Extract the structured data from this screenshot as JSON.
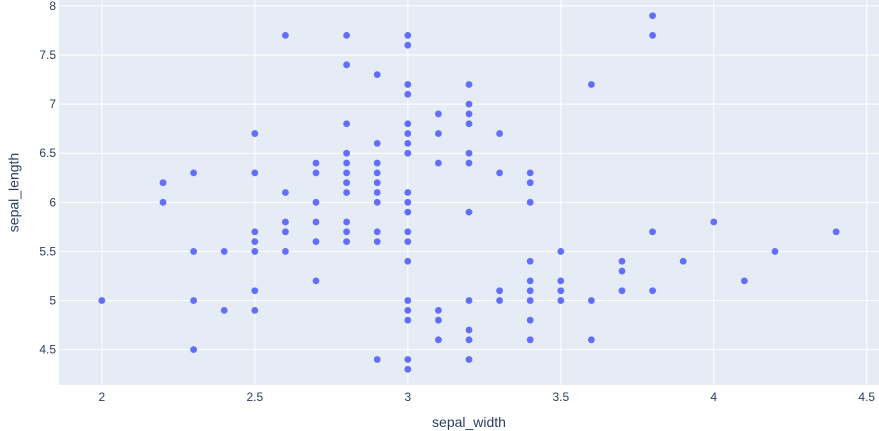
{
  "chart_data": {
    "type": "scatter",
    "xlabel": "sepal_width",
    "ylabel": "sepal_length",
    "xlim": [
      1.86,
      4.54
    ],
    "ylim": [
      4.14,
      8.06
    ],
    "xticks": [
      2,
      2.5,
      3,
      3.5,
      4,
      4.5
    ],
    "xtick_labels": [
      "2",
      "2.5",
      "3",
      "3.5",
      "4",
      "4.5"
    ],
    "yticks": [
      4.5,
      5,
      5.5,
      6,
      6.5,
      7,
      7.5,
      8
    ],
    "ytick_labels": [
      "4.5",
      "5",
      "5.5",
      "6",
      "6.5",
      "7",
      "7.5",
      "8"
    ],
    "grid": true,
    "colors": {
      "marker": "#636efa",
      "plot_bg": "#e5ecf6",
      "grid": "#ffffff",
      "text": "#2a3f5f"
    },
    "points": [
      [
        2.0,
        5.0
      ],
      [
        2.2,
        6.2
      ],
      [
        2.2,
        6.0
      ],
      [
        2.3,
        6.3
      ],
      [
        2.3,
        5.5
      ],
      [
        2.3,
        5.0
      ],
      [
        2.3,
        4.5
      ],
      [
        2.4,
        5.5
      ],
      [
        2.4,
        4.9
      ],
      [
        2.5,
        6.7
      ],
      [
        2.5,
        6.3
      ],
      [
        2.5,
        5.7
      ],
      [
        2.5,
        5.6
      ],
      [
        2.5,
        5.5
      ],
      [
        2.5,
        5.1
      ],
      [
        2.5,
        4.9
      ],
      [
        2.6,
        7.7
      ],
      [
        2.6,
        6.1
      ],
      [
        2.6,
        5.8
      ],
      [
        2.6,
        5.7
      ],
      [
        2.6,
        5.5
      ],
      [
        2.7,
        6.4
      ],
      [
        2.7,
        6.3
      ],
      [
        2.7,
        6.0
      ],
      [
        2.7,
        5.8
      ],
      [
        2.7,
        5.6
      ],
      [
        2.7,
        5.2
      ],
      [
        2.8,
        7.7
      ],
      [
        2.8,
        7.4
      ],
      [
        2.8,
        6.8
      ],
      [
        2.8,
        6.5
      ],
      [
        2.8,
        6.4
      ],
      [
        2.8,
        6.3
      ],
      [
        2.8,
        6.2
      ],
      [
        2.8,
        6.1
      ],
      [
        2.8,
        5.8
      ],
      [
        2.8,
        5.7
      ],
      [
        2.8,
        5.6
      ],
      [
        2.9,
        7.3
      ],
      [
        2.9,
        6.6
      ],
      [
        2.9,
        6.4
      ],
      [
        2.9,
        6.3
      ],
      [
        2.9,
        6.2
      ],
      [
        2.9,
        6.1
      ],
      [
        2.9,
        6.0
      ],
      [
        2.9,
        5.7
      ],
      [
        2.9,
        5.6
      ],
      [
        2.9,
        4.4
      ],
      [
        3.0,
        7.7
      ],
      [
        3.0,
        7.6
      ],
      [
        3.0,
        7.2
      ],
      [
        3.0,
        7.1
      ],
      [
        3.0,
        6.8
      ],
      [
        3.0,
        6.7
      ],
      [
        3.0,
        6.6
      ],
      [
        3.0,
        6.5
      ],
      [
        3.0,
        6.1
      ],
      [
        3.0,
        6.0
      ],
      [
        3.0,
        5.9
      ],
      [
        3.0,
        5.7
      ],
      [
        3.0,
        5.6
      ],
      [
        3.0,
        5.4
      ],
      [
        3.0,
        5.0
      ],
      [
        3.0,
        4.9
      ],
      [
        3.0,
        4.8
      ],
      [
        3.0,
        4.4
      ],
      [
        3.0,
        4.3
      ],
      [
        3.1,
        6.9
      ],
      [
        3.1,
        6.7
      ],
      [
        3.1,
        6.4
      ],
      [
        3.1,
        4.9
      ],
      [
        3.1,
        4.8
      ],
      [
        3.1,
        4.6
      ],
      [
        3.2,
        7.2
      ],
      [
        3.2,
        7.0
      ],
      [
        3.2,
        6.9
      ],
      [
        3.2,
        6.8
      ],
      [
        3.2,
        6.5
      ],
      [
        3.2,
        6.4
      ],
      [
        3.2,
        5.9
      ],
      [
        3.2,
        5.0
      ],
      [
        3.2,
        4.7
      ],
      [
        3.2,
        4.6
      ],
      [
        3.2,
        4.4
      ],
      [
        3.3,
        6.7
      ],
      [
        3.3,
        6.3
      ],
      [
        3.3,
        5.1
      ],
      [
        3.3,
        5.0
      ],
      [
        3.4,
        6.3
      ],
      [
        3.4,
        6.2
      ],
      [
        3.4,
        6.0
      ],
      [
        3.4,
        5.4
      ],
      [
        3.4,
        5.2
      ],
      [
        3.4,
        5.1
      ],
      [
        3.4,
        5.0
      ],
      [
        3.4,
        4.8
      ],
      [
        3.4,
        4.6
      ],
      [
        3.5,
        5.5
      ],
      [
        3.5,
        5.2
      ],
      [
        3.5,
        5.1
      ],
      [
        3.5,
        5.0
      ],
      [
        3.6,
        7.2
      ],
      [
        3.6,
        5.0
      ],
      [
        3.6,
        4.6
      ],
      [
        3.7,
        5.4
      ],
      [
        3.7,
        5.3
      ],
      [
        3.7,
        5.1
      ],
      [
        3.8,
        7.9
      ],
      [
        3.8,
        7.7
      ],
      [
        3.8,
        5.7
      ],
      [
        3.8,
        5.1
      ],
      [
        3.9,
        5.4
      ],
      [
        4.0,
        5.8
      ],
      [
        4.1,
        5.2
      ],
      [
        4.2,
        5.5
      ],
      [
        4.4,
        5.7
      ]
    ]
  }
}
